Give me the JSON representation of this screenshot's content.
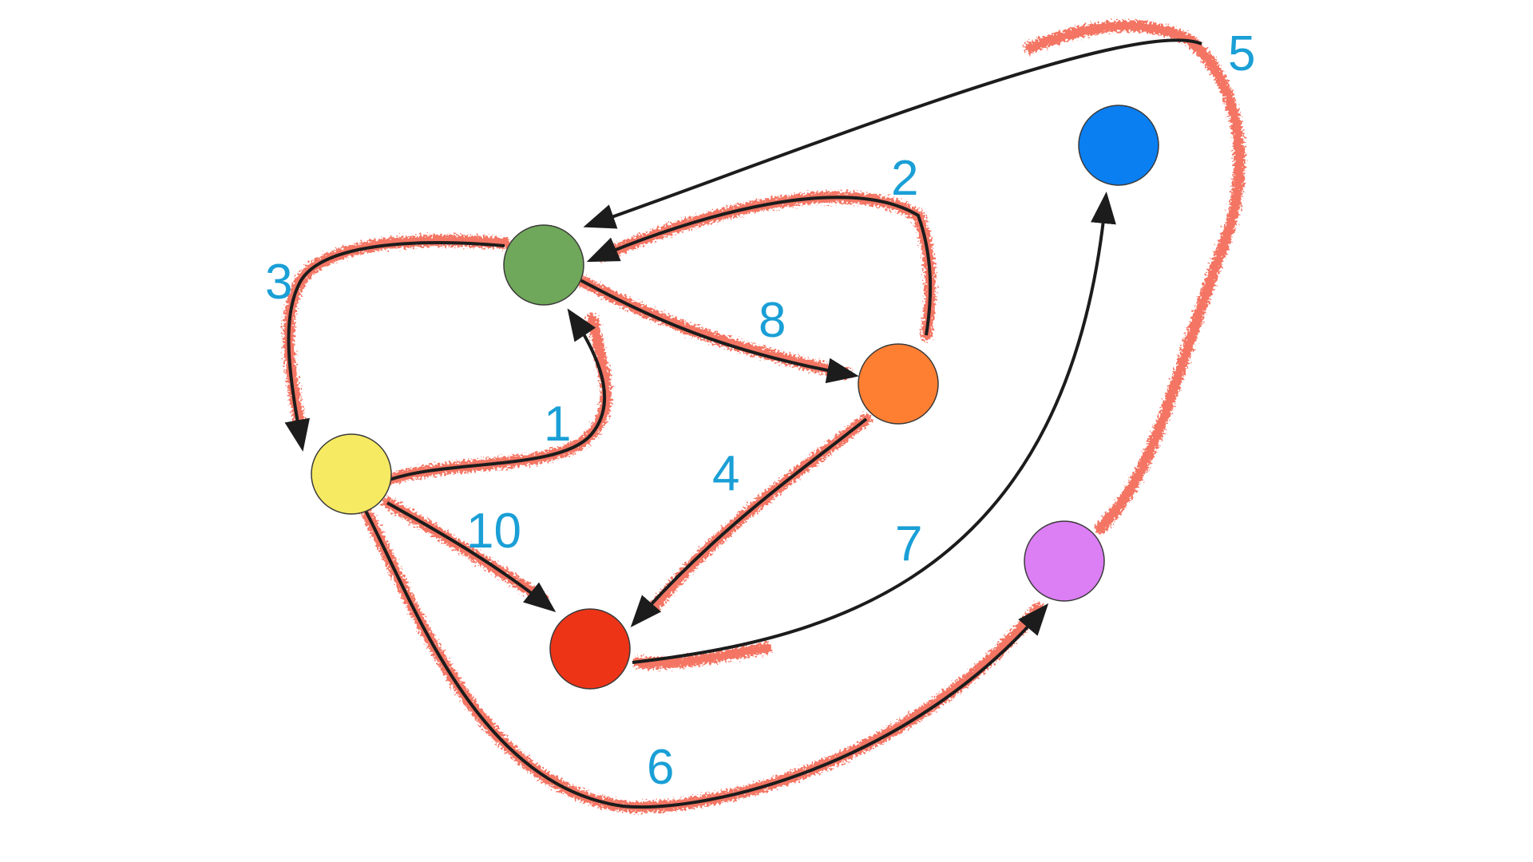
{
  "diagram": {
    "nodes": [
      {
        "id": "green",
        "color": "#6fa85a"
      },
      {
        "id": "orange",
        "color": "#ff7f32"
      },
      {
        "id": "blue",
        "color": "#0a7ff2"
      },
      {
        "id": "yellow",
        "color": "#f6ea62"
      },
      {
        "id": "red",
        "color": "#ee3417"
      },
      {
        "id": "violet",
        "color": "#dc7ef4"
      }
    ],
    "edges": [
      {
        "label": "1",
        "from": "yellow",
        "to": "green",
        "highlighted": true
      },
      {
        "label": "2",
        "from": "orange",
        "to": "green",
        "highlighted": true
      },
      {
        "label": "3",
        "from": "green",
        "to": "yellow",
        "highlighted": true
      },
      {
        "label": "4",
        "from": "orange",
        "to": "red",
        "highlighted": true
      },
      {
        "label": "5",
        "from": "violet",
        "to": "green",
        "highlighted": true
      },
      {
        "label": "6",
        "from": "yellow",
        "to": "violet",
        "highlighted": true
      },
      {
        "label": "7",
        "from": "red",
        "to": "blue",
        "highlighted": false
      },
      {
        "label": "8",
        "from": "green",
        "to": "orange",
        "highlighted": true
      },
      {
        "label": "10",
        "from": "yellow",
        "to": "red",
        "highlighted": true
      }
    ],
    "colors": {
      "label": "#1a9fd6",
      "trail": "#f47564",
      "edge": "#1c1c1c"
    }
  }
}
